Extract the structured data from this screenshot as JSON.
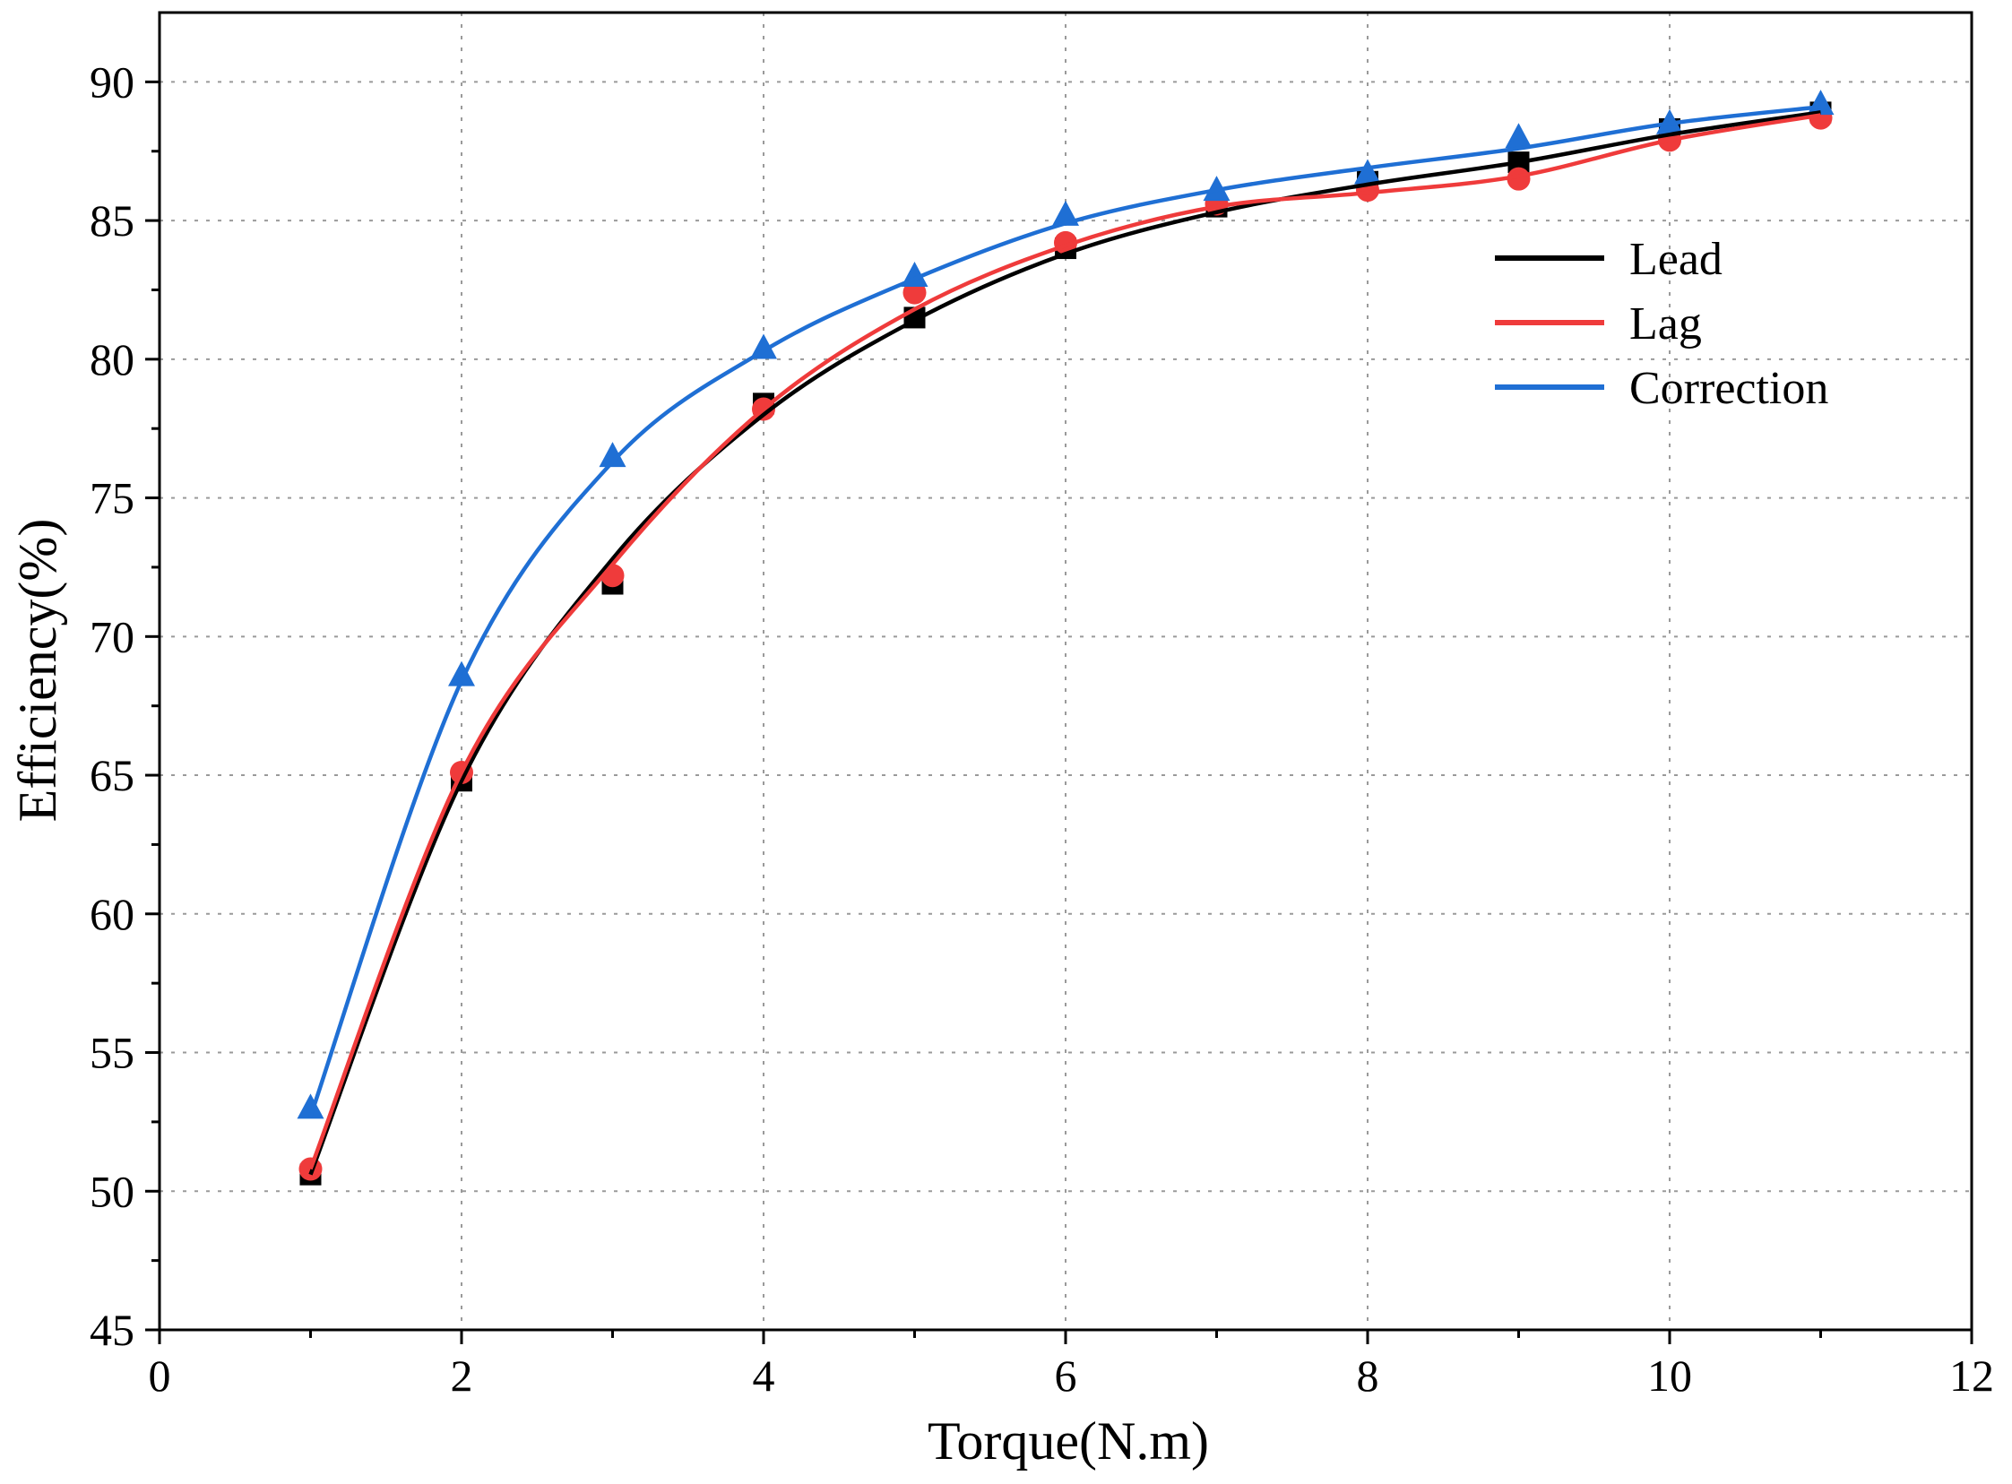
{
  "chart_data": {
    "type": "line",
    "xlabel": "Torque(N.m)",
    "ylabel": "Efficiency(%)",
    "xlim": [
      0,
      12
    ],
    "ylim": [
      45,
      92.5
    ],
    "x_ticks": [
      0,
      2,
      4,
      6,
      8,
      10,
      12
    ],
    "y_ticks": [
      45,
      50,
      55,
      60,
      65,
      70,
      75,
      80,
      85,
      90
    ],
    "grid": true,
    "legend_position": "top-right",
    "x": [
      1,
      2,
      3,
      4,
      5,
      6,
      7,
      8,
      9,
      10,
      11
    ],
    "series": [
      {
        "name": "Lead",
        "color": "#000000",
        "marker": "square",
        "values": [
          50.6,
          64.8,
          71.9,
          78.4,
          81.5,
          84.0,
          85.5,
          86.4,
          87.1,
          88.3,
          88.9
        ],
        "curve": [
          50.6,
          64.8,
          72.8,
          78.0,
          81.4,
          83.8,
          85.3,
          86.3,
          87.1,
          88.1,
          88.9
        ]
      },
      {
        "name": "Lag",
        "color": "#ef3b3b",
        "marker": "circle",
        "values": [
          50.8,
          65.1,
          72.2,
          78.2,
          82.4,
          84.2,
          85.6,
          86.1,
          86.5,
          87.9,
          88.7
        ],
        "curve": [
          50.8,
          65.1,
          72.6,
          78.2,
          81.8,
          84.1,
          85.5,
          86.0,
          86.6,
          87.9,
          88.8
        ]
      },
      {
        "name": "Correction",
        "color": "#1f6fd4",
        "marker": "triangle",
        "values": [
          53.0,
          68.6,
          76.5,
          80.4,
          83.0,
          85.2,
          86.1,
          86.7,
          88.0,
          88.5,
          89.2
        ],
        "curve": [
          52.7,
          68.4,
          76.3,
          80.3,
          82.9,
          84.9,
          86.1,
          86.9,
          87.6,
          88.5,
          89.1
        ]
      }
    ]
  }
}
